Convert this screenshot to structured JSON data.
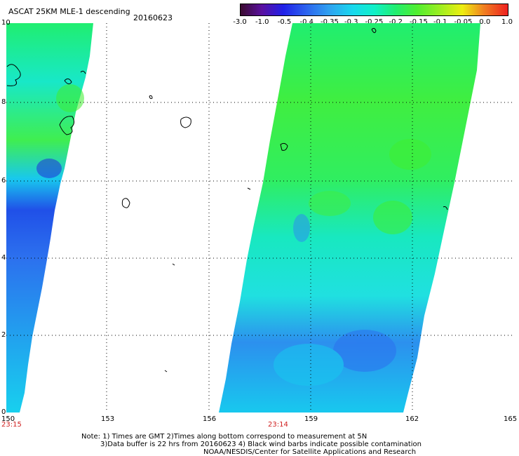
{
  "header": {
    "title": "ASCAT 25KM MLE-1 descending",
    "date": "20160623"
  },
  "colorbar": {
    "labels": [
      "-3.0",
      "-1.0",
      "-0.5",
      "-0.4",
      "-0.35",
      "-0.3",
      "-0.25",
      "-0.2",
      "-0.15",
      "-0.1",
      "-0.05",
      "0.0",
      "1.0"
    ],
    "colors": [
      "#3a0a2e",
      "#5a10a0",
      "#2020e8",
      "#2c66ee",
      "#2fa0f0",
      "#18d8ee",
      "#10f0c8",
      "#20ee70",
      "#50ee30",
      "#a0ee20",
      "#eeee10",
      "#f08020",
      "#ee2020"
    ]
  },
  "axes": {
    "x_ticks": [
      "150",
      "153",
      "156",
      "159",
      "162",
      "165"
    ],
    "y_ticks": [
      "0",
      "2",
      "4",
      "6",
      "8",
      "10"
    ]
  },
  "times": [
    "23:15",
    "23:14"
  ],
  "notes": [
    "Note: 1) Times are GMT 2)Times along bottom correspond to measurement at 5N",
    "3)Data buffer is 22 hrs from 20160623 4) Black wind barbs indicate possible contamination",
    "NOAA/NESDIS/Center for Satellite Applications and Research"
  ],
  "colors": {
    "grid": "#000000",
    "time_label": "#d02020"
  }
}
